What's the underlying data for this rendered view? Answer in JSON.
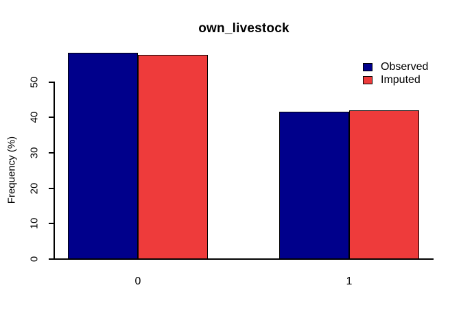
{
  "chart_data": {
    "type": "bar",
    "title": "own_livestock",
    "categories": [
      "0",
      "1"
    ],
    "series": [
      {
        "name": "Observed",
        "color": "#00008B",
        "values": [
          58.2,
          41.6
        ]
      },
      {
        "name": "Imputed",
        "color": "#EE3B3B",
        "values": [
          57.7,
          42.0
        ]
      }
    ],
    "xlabel": "",
    "ylabel": "Frequency (%)",
    "yticks": [
      0,
      10,
      20,
      30,
      40,
      50
    ],
    "ylim": [
      0,
      58.2
    ],
    "grid": false,
    "legend_position": "top-right",
    "bar_border_color": "#000000",
    "axis_color": "#000000",
    "background_color": "#FFFFFF"
  }
}
